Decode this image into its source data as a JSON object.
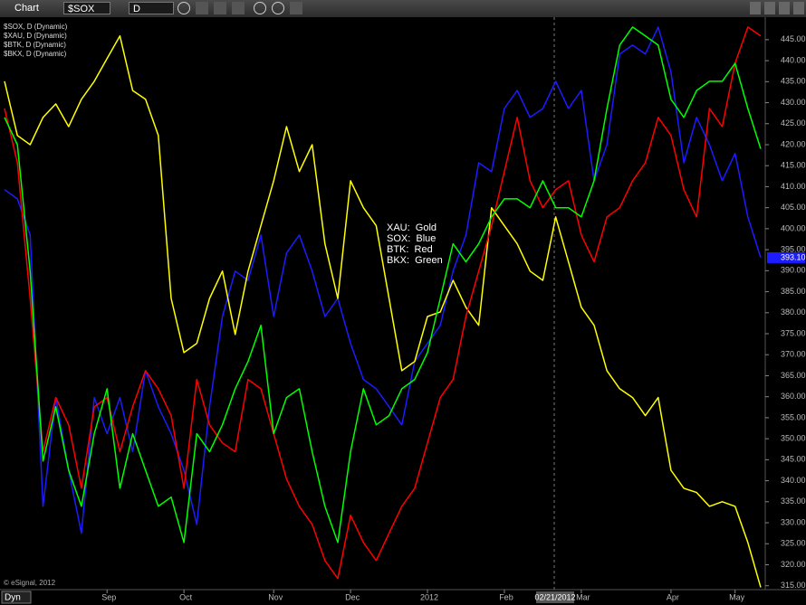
{
  "ui": {
    "window_title": "Chart",
    "symbol": "$SOX",
    "interval": "D",
    "mode": "Dyn",
    "copyright": "© eSignal, 2012",
    "crosshair_date": "02/21/2012"
  },
  "chart_data": {
    "type": "line",
    "categories": [
      null,
      null,
      null,
      null,
      null,
      null,
      null,
      null,
      "Sep",
      null,
      null,
      null,
      null,
      null,
      "Oct",
      null,
      null,
      null,
      null,
      null,
      null,
      "Nov",
      null,
      null,
      null,
      null,
      null,
      "Dec",
      null,
      null,
      null,
      null,
      null,
      "2012",
      null,
      null,
      null,
      null,
      null,
      "Feb",
      null,
      null,
      null,
      null,
      null,
      "Mar",
      null,
      null,
      null,
      null,
      null,
      null,
      "Apr",
      null,
      null,
      null,
      null,
      "May",
      null,
      null
    ],
    "series": [
      {
        "name": "$SOX, D (Dynamic)",
        "color": "#1c1cff",
        "values": [
          409.3,
          407.1,
          398.5,
          333.9,
          359.8,
          342.5,
          327.5,
          359.8,
          351.2,
          359.8,
          346.9,
          366.2,
          357.6,
          351.2,
          342.5,
          329.6,
          357.6,
          379.1,
          389.9,
          387.7,
          398.5,
          379.1,
          394.2,
          398.5,
          389.9,
          379.1,
          383.4,
          372.7,
          364.1,
          361.9,
          357.6,
          353.3,
          368.4,
          372.7,
          377,
          389.9,
          398.5,
          415.7,
          413.6,
          428.6,
          432.9,
          426.5,
          428.6,
          435.1,
          428.6,
          432.9,
          411.4,
          420,
          441.6,
          443.7,
          441.6,
          448,
          437.3,
          415.7,
          426.5,
          420,
          411.4,
          417.9,
          402.8,
          393.1
        ]
      },
      {
        "name": "$XAU, D (Dynamic)",
        "color": "#ffff00",
        "values": [
          435.1,
          422.2,
          420,
          426.5,
          429.7,
          424.3,
          430.8,
          435.1,
          440.5,
          445.9,
          432.9,
          430.8,
          422.2,
          383.4,
          370.5,
          372.7,
          383.4,
          389.9,
          374.8,
          389.9,
          400.7,
          411.4,
          424.3,
          413.6,
          420,
          396.4,
          383.4,
          411.4,
          405,
          400.7,
          383.4,
          366.2,
          368.4,
          379.1,
          380.2,
          387.7,
          381.3,
          377,
          405,
          400.7,
          396.4,
          389.9,
          387.7,
          402.8,
          392.1,
          381.3,
          377,
          366.2,
          361.9,
          359.8,
          355.5,
          359.8,
          342.5,
          338.2,
          337.2,
          333.9,
          335,
          333.9,
          325.3,
          314.6
        ]
      },
      {
        "name": "$BTK, D (Dynamic)",
        "color": "#ff0000",
        "values": [
          428.6,
          415.7,
          383.4,
          346.9,
          359.8,
          353.3,
          338.2,
          357.6,
          359.8,
          346.9,
          357.6,
          366.2,
          361.9,
          355.5,
          338.2,
          364.1,
          353.3,
          349,
          346.9,
          364.1,
          361.9,
          351.2,
          340.4,
          333.9,
          329.6,
          321,
          316.7,
          331.8,
          325.3,
          321,
          327.5,
          333.9,
          338.2,
          349,
          359.8,
          364.1,
          379.1,
          389.9,
          400.7,
          413.6,
          426.5,
          411.4,
          405,
          409.3,
          411.4,
          398.5,
          392.1,
          402.8,
          405,
          411.4,
          415.7,
          426.5,
          422.2,
          409.3,
          402.8,
          428.6,
          424.3,
          439.4,
          448,
          445.9
        ]
      },
      {
        "name": "$BKX, D (Dynamic)",
        "color": "#00ff00",
        "values": [
          426.5,
          420,
          389.9,
          344.7,
          357.6,
          342.5,
          333.9,
          351.2,
          361.9,
          338.2,
          351.2,
          342.5,
          333.9,
          336.1,
          325.3,
          351.2,
          346.9,
          353.3,
          361.9,
          368.4,
          377,
          351.2,
          359.8,
          361.9,
          346.9,
          333.9,
          325.3,
          346.9,
          361.9,
          353.3,
          355.5,
          361.9,
          364.1,
          370.5,
          383.4,
          396.4,
          392.1,
          396.4,
          402.8,
          407.1,
          407.1,
          405,
          411.4,
          405,
          405,
          402.8,
          411.4,
          428.6,
          443.7,
          448,
          445.9,
          443.7,
          430.8,
          426.5,
          432.9,
          435.1,
          435.1,
          439.4,
          428.6,
          419
        ]
      }
    ],
    "annotations": [
      "XAU:  Gold",
      "SOX:  Blue",
      "BTK:  Red",
      "BKX:  Green"
    ],
    "last_value": {
      "value": 393.1,
      "label": "393.10"
    },
    "ylim": [
      313,
      451
    ],
    "yticks": [
      {
        "value": 315,
        "label": "315.00"
      },
      {
        "value": 320,
        "label": "320.00"
      },
      {
        "value": 325,
        "label": "325.00"
      },
      {
        "value": 330,
        "label": "330.00"
      },
      {
        "value": 335,
        "label": "335.00"
      },
      {
        "value": 340,
        "label": "340.00"
      },
      {
        "value": 345,
        "label": "345.00"
      },
      {
        "value": 350,
        "label": "350.00"
      },
      {
        "value": 355,
        "label": "355.00"
      },
      {
        "value": 360,
        "label": "360.00"
      },
      {
        "value": 365,
        "label": "365.00"
      },
      {
        "value": 370,
        "label": "370.00"
      },
      {
        "value": 375,
        "label": "375.00"
      },
      {
        "value": 380,
        "label": "380.00"
      },
      {
        "value": 385,
        "label": "385.00"
      },
      {
        "value": 390,
        "label": "390.00"
      },
      {
        "value": 395,
        "label": "395.00"
      },
      {
        "value": 400,
        "label": "400.00"
      },
      {
        "value": 405,
        "label": "405.00"
      },
      {
        "value": 410,
        "label": "410.00"
      },
      {
        "value": 415,
        "label": "415.00"
      },
      {
        "value": 420,
        "label": "420.00"
      },
      {
        "value": 425,
        "label": "425.00"
      },
      {
        "value": 430,
        "label": "430.00"
      },
      {
        "value": 435,
        "label": "435.00"
      },
      {
        "value": 440,
        "label": "440.00"
      },
      {
        "value": 445,
        "label": "445.00"
      }
    ],
    "grid": false
  }
}
